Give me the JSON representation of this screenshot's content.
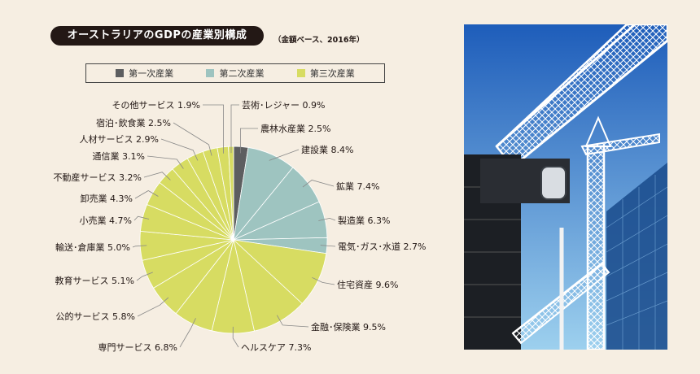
{
  "title": "オーストラリアのGDPの産業別構成",
  "subtitle": "（金額ベース、2016年）",
  "legend": [
    {
      "label": "第一次産業",
      "color": "#5d5e60"
    },
    {
      "label": "第二次産業",
      "color": "#9ec4c0"
    },
    {
      "label": "第三次産業",
      "color": "#d7dc62"
    }
  ],
  "colors": {
    "background": "#f6eee2",
    "line": "#888888",
    "sky_top": "#1e5dba",
    "sky_bottom": "#9dd0ee"
  },
  "chart_data": {
    "type": "pie",
    "slices": [
      {
        "label": "農林水産業",
        "value": 2.5,
        "group": 0,
        "text": "農林水産業 2.5%"
      },
      {
        "label": "建設業",
        "value": 8.4,
        "group": 1,
        "text": "建設業 8.4%"
      },
      {
        "label": "鉱業",
        "value": 7.4,
        "group": 1,
        "text": "鉱業 7.4%"
      },
      {
        "label": "製造業",
        "value": 6.3,
        "group": 1,
        "text": "製造業 6.3%"
      },
      {
        "label": "電気・ガス・水道",
        "value": 2.7,
        "group": 1,
        "text": "電気･ガス･水道 2.7%"
      },
      {
        "label": "住宅資産",
        "value": 9.6,
        "group": 2,
        "text": "住宅資産 9.6%"
      },
      {
        "label": "金融・保険業",
        "value": 9.5,
        "group": 2,
        "text": "金融･保険業 9.5%"
      },
      {
        "label": "ヘルスケア",
        "value": 7.3,
        "group": 2,
        "text": "ヘルスケア 7.3%"
      },
      {
        "label": "専門サービス",
        "value": 6.8,
        "group": 2,
        "text": "専門サービス 6.8%"
      },
      {
        "label": "公的サービス",
        "value": 5.8,
        "group": 2,
        "text": "公的サービス 5.8%"
      },
      {
        "label": "教育サービス",
        "value": 5.1,
        "group": 2,
        "text": "教育サービス 5.1%"
      },
      {
        "label": "輸送・倉庫業",
        "value": 5.0,
        "group": 2,
        "text": "輸送･倉庫業 5.0%"
      },
      {
        "label": "小売業",
        "value": 4.7,
        "group": 2,
        "text": "小売業 4.7%"
      },
      {
        "label": "卸売業",
        "value": 4.3,
        "group": 2,
        "text": "卸売業 4.3%"
      },
      {
        "label": "不動産サービス",
        "value": 3.2,
        "group": 2,
        "text": "不動産サービス 3.2%"
      },
      {
        "label": "通信業",
        "value": 3.1,
        "group": 2,
        "text": "通信業 3.1%"
      },
      {
        "label": "人材サービス",
        "value": 2.9,
        "group": 2,
        "text": "人材サービス 2.9%"
      },
      {
        "label": "宿泊・飲食業",
        "value": 2.5,
        "group": 2,
        "text": "宿泊･飲食業 2.5%"
      },
      {
        "label": "その他サービス",
        "value": 1.9,
        "group": 2,
        "text": "その他サービス 1.9%"
      },
      {
        "label": "芸術・レジャー",
        "value": 0.9,
        "group": 2,
        "text": "芸術･レジャー 0.9%"
      }
    ]
  }
}
